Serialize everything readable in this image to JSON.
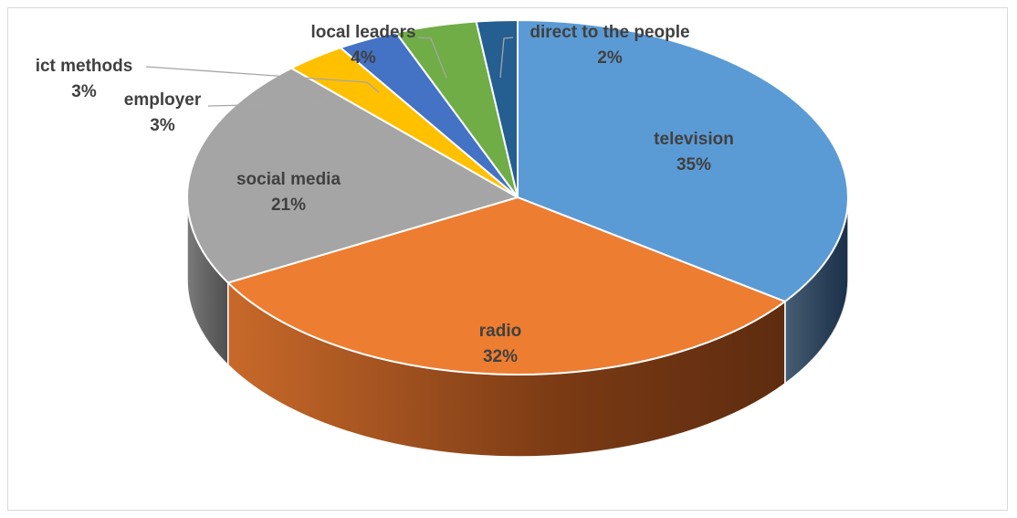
{
  "chart_data": {
    "type": "pie",
    "style": "3d",
    "title": "",
    "start_angle_deg": 0,
    "direction": "clockwise",
    "slices": [
      {
        "label": "television",
        "value": 35,
        "value_text": "35%",
        "color": "#5B9BD5",
        "side_color": "#1F3A56"
      },
      {
        "label": "radio",
        "value": 32,
        "value_text": "32%",
        "color": "#ED7D31",
        "side_color": "#6E3512"
      },
      {
        "label": "social media",
        "value": 21,
        "value_text": "21%",
        "color": "#A5A5A5",
        "side_color": "#5E5E5E"
      },
      {
        "label": "employer",
        "value": 3,
        "value_text": "3%",
        "color": "#FFC000",
        "side_color": "#8A6800"
      },
      {
        "label": "ict methods",
        "value": 3,
        "value_text": "3%",
        "color": "#4472C4",
        "side_color": "#233C68"
      },
      {
        "label": "local leaders",
        "value": 4,
        "value_text": "4%",
        "color": "#70AD47",
        "side_color": "#3B5E25"
      },
      {
        "label": "direct to the people",
        "value": 2,
        "value_text": "2%",
        "color": "#255E91",
        "side_color": "#132F49"
      }
    ]
  }
}
